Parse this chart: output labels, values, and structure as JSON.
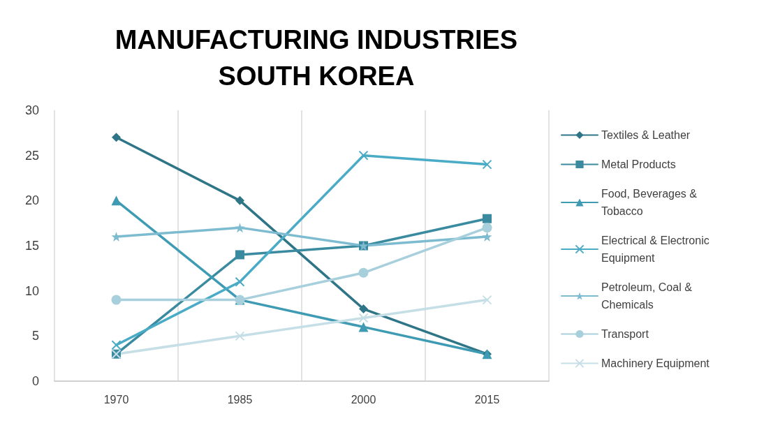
{
  "chart_data": {
    "type": "line",
    "title": "MANUFACTURING INDUSTRIES\nSOUTH KOREA",
    "categories": [
      "1970",
      "1985",
      "2000",
      "2015"
    ],
    "series": [
      {
        "name": "Textiles & Leather",
        "color": "#2e7587",
        "marker": "diamond",
        "values": [
          27,
          20,
          8,
          3
        ]
      },
      {
        "name": "Metal Products",
        "color": "#3a8aa0",
        "marker": "square",
        "values": [
          3,
          14,
          15,
          18
        ]
      },
      {
        "name": "Food, Beverages & Tobacco",
        "color": "#3f9bb3",
        "marker": "triangle",
        "values": [
          20,
          9,
          6,
          3
        ]
      },
      {
        "name": "Electrical & Electronic Equipment",
        "color": "#4aabc6",
        "marker": "cross",
        "values": [
          4,
          11,
          25,
          24
        ]
      },
      {
        "name": "Petroleum, Coal & Chemicals",
        "color": "#7dbcd0",
        "marker": "star",
        "values": [
          16,
          17,
          15,
          16
        ]
      },
      {
        "name": "Transport",
        "color": "#a8cfdc",
        "marker": "circle",
        "values": [
          9,
          9,
          12,
          17
        ]
      },
      {
        "name": "Machinery Equipment",
        "color": "#c6dfe7",
        "marker": "cross",
        "values": [
          3,
          5,
          7,
          9
        ]
      }
    ],
    "ylim": [
      0,
      30
    ],
    "yticks": [
      0,
      5,
      10,
      15,
      20,
      25,
      30
    ],
    "grid": "x",
    "legend": "right",
    "line_style": "solid"
  }
}
